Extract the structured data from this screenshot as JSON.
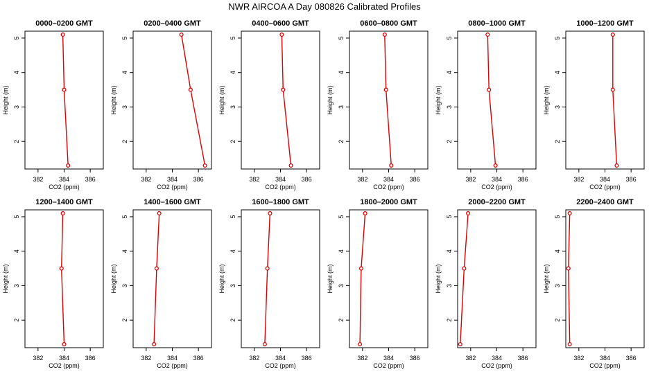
{
  "page": {
    "title": "NWR AIRCOA A  Day 080826  Calibrated Profiles"
  },
  "style": {
    "line_color": "#dd0000",
    "marker_color": "#dd0000",
    "axis_color": "#000000"
  },
  "chart_data": [
    {
      "type": "line",
      "title": "0000–0200 GMT",
      "xlabel": "CO2 (ppm)",
      "ylabel": "Height (m)",
      "xlim": [
        381,
        387
      ],
      "ylim": [
        1.2,
        5.2
      ],
      "xticks": [
        "382",
        "384",
        "386"
      ],
      "yticks": [
        "2",
        "3",
        "4",
        "5"
      ],
      "series": [
        {
          "x": [
            384.3,
            384.0,
            383.9
          ],
          "y": [
            1.3,
            3.5,
            5.1
          ]
        }
      ]
    },
    {
      "type": "line",
      "title": "0200–0400 GMT",
      "xlabel": "CO2 (ppm)",
      "ylabel": "Height (m)",
      "xlim": [
        381,
        387
      ],
      "ylim": [
        1.2,
        5.2
      ],
      "xticks": [
        "382",
        "384",
        "386"
      ],
      "yticks": [
        "2",
        "3",
        "4",
        "5"
      ],
      "series": [
        {
          "x": [
            386.5,
            385.4,
            384.7
          ],
          "y": [
            1.3,
            3.5,
            5.1
          ]
        }
      ]
    },
    {
      "type": "line",
      "title": "0400–0600 GMT",
      "xlabel": "CO2 (ppm)",
      "ylabel": "Height (m)",
      "xlim": [
        381,
        387
      ],
      "ylim": [
        1.2,
        5.2
      ],
      "xticks": [
        "382",
        "384",
        "386"
      ],
      "yticks": [
        "2",
        "3",
        "4",
        "5"
      ],
      "series": [
        {
          "x": [
            384.8,
            384.2,
            384.1
          ],
          "y": [
            1.3,
            3.5,
            5.1
          ]
        }
      ]
    },
    {
      "type": "line",
      "title": "0600–0800 GMT",
      "xlabel": "CO2 (ppm)",
      "ylabel": "Height (m)",
      "xlim": [
        381,
        387
      ],
      "ylim": [
        1.2,
        5.2
      ],
      "xticks": [
        "382",
        "384",
        "386"
      ],
      "yticks": [
        "2",
        "3",
        "4",
        "5"
      ],
      "series": [
        {
          "x": [
            384.2,
            383.8,
            383.7
          ],
          "y": [
            1.3,
            3.5,
            5.1
          ]
        }
      ]
    },
    {
      "type": "line",
      "title": "0800–1000 GMT",
      "xlabel": "CO2 (ppm)",
      "ylabel": "Height (m)",
      "xlim": [
        381,
        387
      ],
      "ylim": [
        1.2,
        5.2
      ],
      "xticks": [
        "382",
        "384",
        "386"
      ],
      "yticks": [
        "2",
        "3",
        "4",
        "5"
      ],
      "series": [
        {
          "x": [
            383.9,
            383.4,
            383.3
          ],
          "y": [
            1.3,
            3.5,
            5.1
          ]
        }
      ]
    },
    {
      "type": "line",
      "title": "1000–1200 GMT",
      "xlabel": "CO2 (ppm)",
      "ylabel": "Height (m)",
      "xlim": [
        381,
        387
      ],
      "ylim": [
        1.2,
        5.2
      ],
      "xticks": [
        "382",
        "384",
        "386"
      ],
      "yticks": [
        "2",
        "3",
        "4",
        "5"
      ],
      "series": [
        {
          "x": [
            384.9,
            384.6,
            384.6
          ],
          "y": [
            1.3,
            3.5,
            5.1
          ]
        }
      ]
    },
    {
      "type": "line",
      "title": "1200–1400 GMT",
      "xlabel": "CO2 (ppm)",
      "ylabel": "Height (m)",
      "xlim": [
        381,
        387
      ],
      "ylim": [
        1.2,
        5.2
      ],
      "xticks": [
        "382",
        "384",
        "386"
      ],
      "yticks": [
        "2",
        "3",
        "4",
        "5"
      ],
      "series": [
        {
          "x": [
            384.0,
            383.8,
            383.9
          ],
          "y": [
            1.3,
            3.5,
            5.1
          ]
        }
      ]
    },
    {
      "type": "line",
      "title": "1400–1600 GMT",
      "xlabel": "CO2 (ppm)",
      "ylabel": "Height (m)",
      "xlim": [
        381,
        387
      ],
      "ylim": [
        1.2,
        5.2
      ],
      "xticks": [
        "382",
        "384",
        "386"
      ],
      "yticks": [
        "2",
        "3",
        "4",
        "5"
      ],
      "series": [
        {
          "x": [
            382.6,
            382.8,
            383.0
          ],
          "y": [
            1.3,
            3.5,
            5.1
          ]
        }
      ]
    },
    {
      "type": "line",
      "title": "1600–1800 GMT",
      "xlabel": "CO2 (ppm)",
      "ylabel": "Height (m)",
      "xlim": [
        381,
        387
      ],
      "ylim": [
        1.2,
        5.2
      ],
      "xticks": [
        "382",
        "384",
        "386"
      ],
      "yticks": [
        "2",
        "3",
        "4",
        "5"
      ],
      "series": [
        {
          "x": [
            382.8,
            383.0,
            383.2
          ],
          "y": [
            1.3,
            3.5,
            5.1
          ]
        }
      ]
    },
    {
      "type": "line",
      "title": "1800–2000 GMT",
      "xlabel": "CO2 (ppm)",
      "ylabel": "Height (m)",
      "xlim": [
        381,
        387
      ],
      "ylim": [
        1.2,
        5.2
      ],
      "xticks": [
        "382",
        "384",
        "386"
      ],
      "yticks": [
        "2",
        "3",
        "4",
        "5"
      ],
      "series": [
        {
          "x": [
            381.8,
            381.9,
            382.2
          ],
          "y": [
            1.3,
            3.5,
            5.1
          ]
        }
      ]
    },
    {
      "type": "line",
      "title": "2000–2200 GMT",
      "xlabel": "CO2 (ppm)",
      "ylabel": "Height (m)",
      "xlim": [
        381,
        387
      ],
      "ylim": [
        1.2,
        5.2
      ],
      "xticks": [
        "382",
        "384",
        "386"
      ],
      "yticks": [
        "2",
        "3",
        "4",
        "5"
      ],
      "series": [
        {
          "x": [
            381.2,
            381.5,
            381.8
          ],
          "y": [
            1.3,
            3.5,
            5.1
          ]
        }
      ]
    },
    {
      "type": "line",
      "title": "2200–2400 GMT",
      "xlabel": "CO2 (ppm)",
      "ylabel": "Height (m)",
      "xlim": [
        381,
        387
      ],
      "ylim": [
        1.2,
        5.2
      ],
      "xticks": [
        "382",
        "384",
        "386"
      ],
      "yticks": [
        "2",
        "3",
        "4",
        "5"
      ],
      "series": [
        {
          "x": [
            381.3,
            381.2,
            381.3
          ],
          "y": [
            1.3,
            3.5,
            5.1
          ]
        }
      ]
    }
  ]
}
